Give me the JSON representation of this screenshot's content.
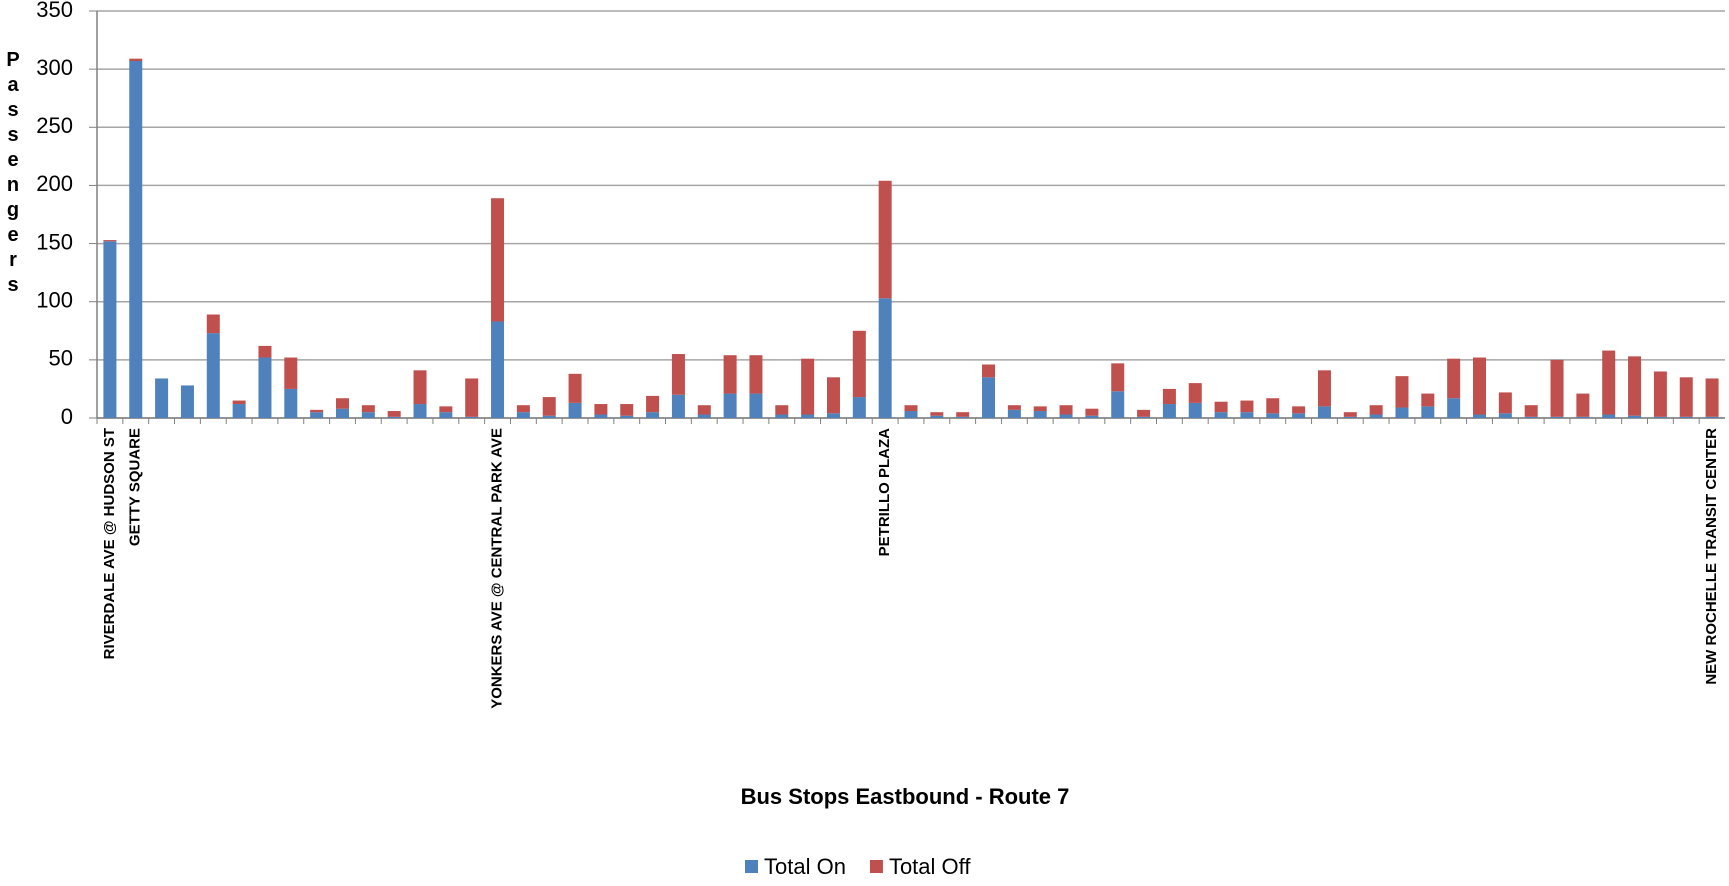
{
  "chart_data": {
    "type": "stacked_bar",
    "x_label": "Bus Stops Eastbound - Route 7",
    "y_label": "Passengers",
    "categories": [
      "RIVERDALE AVE @ HUDSON ST",
      "GETTY SQUARE",
      null,
      null,
      null,
      null,
      null,
      null,
      null,
      null,
      null,
      null,
      null,
      null,
      null,
      "YONKERS AVE @ CENTRAL PARK AVE",
      null,
      null,
      null,
      null,
      null,
      null,
      null,
      null,
      null,
      null,
      null,
      null,
      null,
      null,
      "PETRILLO PLAZA",
      null,
      null,
      null,
      null,
      null,
      null,
      null,
      null,
      null,
      null,
      null,
      null,
      null,
      null,
      null,
      null,
      null,
      null,
      null,
      null,
      null,
      null,
      null,
      null,
      null,
      null,
      null,
      null,
      null,
      null,
      null,
      "NEW ROCHELLE TRANSIT CENTER"
    ],
    "series": [
      {
        "name": "Total On",
        "color": "#4f81bd",
        "values": [
          152,
          307,
          34,
          28,
          73,
          12,
          52,
          25,
          5,
          8,
          5,
          1,
          12,
          5,
          1,
          83,
          5,
          2,
          13,
          3,
          2,
          5,
          20,
          3,
          21,
          21,
          3,
          3,
          4,
          18,
          103,
          6,
          2,
          1,
          35,
          7,
          6,
          3,
          2,
          23,
          1,
          12,
          13,
          5,
          5,
          4,
          4,
          10,
          1,
          3,
          9,
          10,
          17,
          3,
          4,
          1,
          1,
          1,
          3,
          2,
          1,
          1,
          1
        ]
      },
      {
        "name": "Total Off",
        "color": "#c0504d",
        "values": [
          1,
          2,
          0,
          0,
          16,
          3,
          10,
          27,
          2,
          9,
          6,
          5,
          29,
          5,
          33,
          106,
          6,
          16,
          25,
          9,
          10,
          14,
          35,
          8,
          33,
          33,
          8,
          48,
          31,
          57,
          101,
          5,
          3,
          4,
          11,
          4,
          4,
          8,
          6,
          24,
          6,
          13,
          17,
          9,
          10,
          13,
          6,
          31,
          4,
          8,
          27,
          11,
          34,
          49,
          18,
          10,
          49,
          20,
          55,
          51,
          39,
          34,
          33
        ]
      }
    ],
    "ylim": [
      0,
      350
    ],
    "yticks": [
      0,
      50,
      100,
      150,
      200,
      250,
      300,
      350
    ],
    "grid": true
  }
}
